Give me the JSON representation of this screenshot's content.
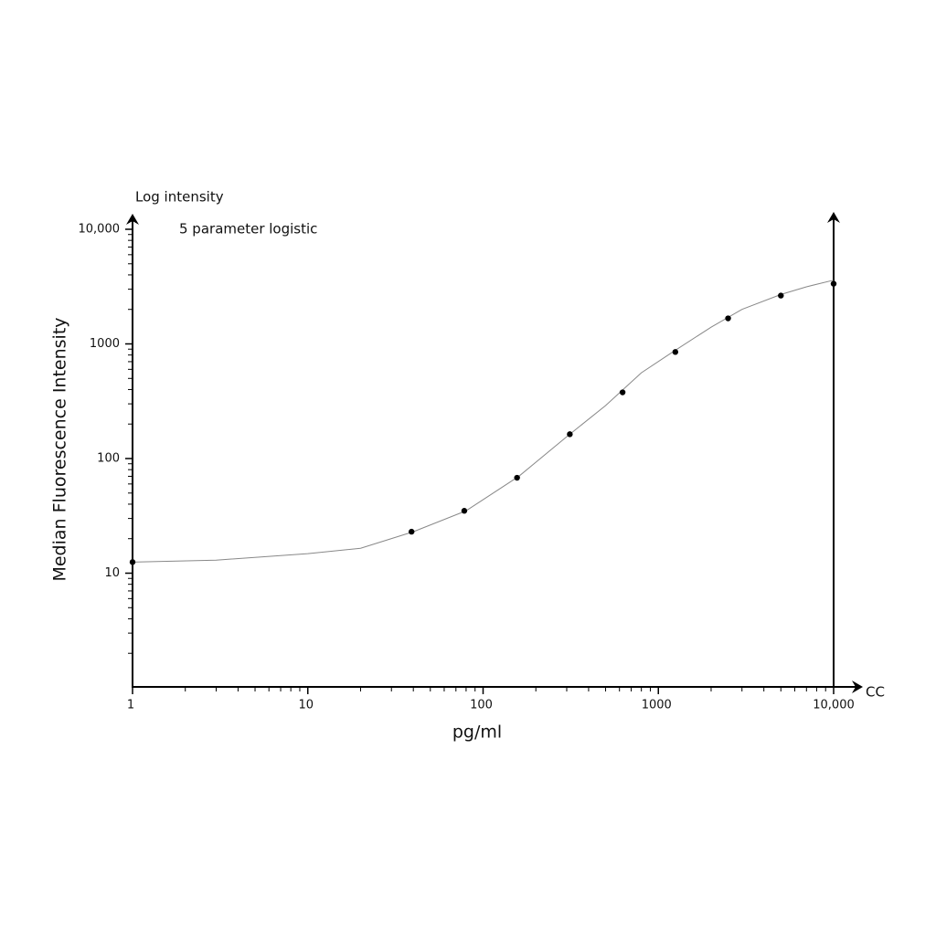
{
  "chart_data": {
    "type": "scatter",
    "y_axis_title": "Log intensity",
    "annotation": "5 parameter logistic",
    "ylabel": "Median Fluorescence Intensity",
    "xlabel": "pg/ml",
    "x_axis_end_label": "CC",
    "xscale": "log",
    "yscale": "log",
    "xlim": [
      1,
      10000
    ],
    "ylim": [
      1,
      10000
    ],
    "xticks": [
      1,
      10,
      100,
      1000,
      {
        "value": 10000,
        "label": "10,000"
      }
    ],
    "yticks": [
      10,
      100,
      1000,
      {
        "value": 10000,
        "label": "10,000"
      }
    ],
    "xminor_ticks": [
      2,
      3,
      4,
      5,
      6,
      7,
      8,
      9,
      20,
      30,
      40,
      50,
      60,
      70,
      80,
      90,
      200,
      300,
      400,
      500,
      600,
      700,
      800,
      900,
      2000,
      3000,
      4000,
      5000,
      6000,
      7000,
      8000,
      9000
    ],
    "yminor_ticks": [
      2,
      3,
      4,
      5,
      6,
      7,
      8,
      9,
      20,
      30,
      40,
      50,
      60,
      70,
      80,
      90,
      200,
      300,
      400,
      500,
      600,
      700,
      800,
      900,
      2000,
      3000,
      4000,
      5000,
      6000,
      7000,
      8000,
      9000
    ],
    "x": [
      1,
      39.0625,
      78.125,
      156.25,
      312.5,
      625,
      1250,
      2500,
      5000,
      10000
    ],
    "values": [
      12.5,
      23,
      35,
      68,
      163,
      378,
      850,
      1670,
      2640,
      3350
    ],
    "color": "#000000",
    "fit": {
      "color": "#888888",
      "x": [
        1,
        3,
        10,
        20,
        40,
        80,
        160,
        300,
        500,
        800,
        1250,
        2000,
        3000,
        5000,
        7000,
        10000
      ],
      "values": [
        12.5,
        13,
        14.8,
        16.5,
        23,
        35,
        70,
        155,
        290,
        560,
        880,
        1400,
        2000,
        2700,
        3150,
        3600
      ]
    }
  }
}
